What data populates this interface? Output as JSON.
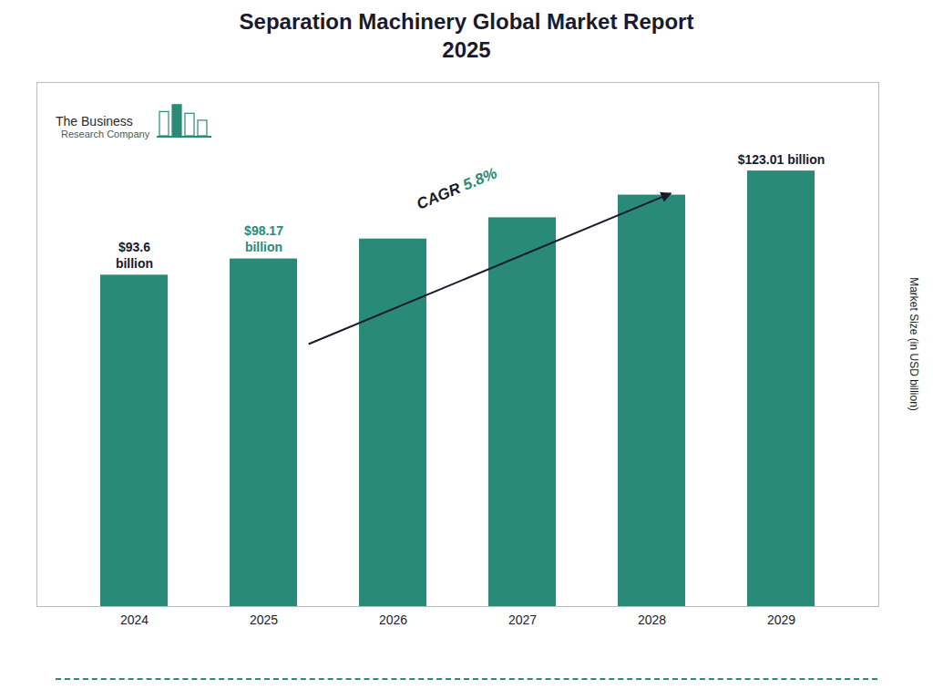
{
  "chart_data": {
    "type": "bar",
    "title": "Separation Machinery Global Market Report\n2025",
    "categories": [
      "2024",
      "2025",
      "2026",
      "2027",
      "2028",
      "2029"
    ],
    "values": [
      93.6,
      98.17,
      103.8,
      109.8,
      116.2,
      123.01
    ],
    "color": "#2a8a78",
    "ylim": [
      0,
      148
    ],
    "ylabel": "Market Size (in USD billion)",
    "tick_labels": "x",
    "annotations": [
      {
        "text": "$93.6\nbillion",
        "category": "2024",
        "color": "#1a1a2e"
      },
      {
        "text": "$98.17\nbillion",
        "category": "2025",
        "color": "#2a8a78"
      },
      {
        "text": "$123.01 billion",
        "category": "2029",
        "color": "#1a1a2e"
      },
      {
        "text": [
          "CAGR ",
          "5.8%"
        ],
        "colors": [
          "#1a1a2e",
          "#2a8a78"
        ]
      },
      {
        "text": [
          "The Business",
          "Research Company"
        ]
      }
    ]
  }
}
